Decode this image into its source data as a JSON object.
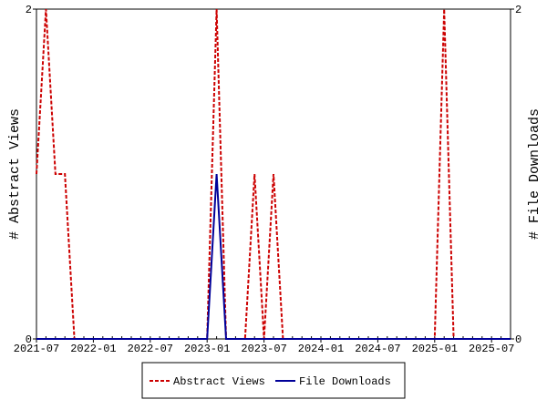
{
  "chart_data": {
    "type": "line",
    "x": [
      "2021-07",
      "2021-08",
      "2021-09",
      "2021-10",
      "2021-11",
      "2021-12",
      "2022-01",
      "2022-02",
      "2022-03",
      "2022-04",
      "2022-05",
      "2022-06",
      "2022-07",
      "2022-08",
      "2022-09",
      "2022-10",
      "2022-11",
      "2022-12",
      "2023-01",
      "2023-02",
      "2023-03",
      "2023-04",
      "2023-05",
      "2023-06",
      "2023-07",
      "2023-08",
      "2023-09",
      "2023-10",
      "2023-11",
      "2023-12",
      "2024-01",
      "2024-02",
      "2024-03",
      "2024-04",
      "2024-05",
      "2024-06",
      "2024-07",
      "2024-08",
      "2024-09",
      "2024-10",
      "2024-11",
      "2024-12",
      "2025-01",
      "2025-02",
      "2025-03",
      "2025-04",
      "2025-05",
      "2025-06",
      "2025-07",
      "2025-08",
      "2025-09"
    ],
    "series": [
      {
        "name": "Abstract Views",
        "color": "#cc0000",
        "dashed": true,
        "axis": "y",
        "values": [
          1,
          2,
          1,
          1,
          0,
          0,
          0,
          0,
          0,
          0,
          0,
          0,
          0,
          0,
          0,
          0,
          0,
          0,
          0,
          2,
          0,
          0,
          0,
          1,
          0,
          1,
          0,
          0,
          0,
          0,
          0,
          0,
          0,
          0,
          0,
          0,
          0,
          0,
          0,
          0,
          0,
          0,
          0,
          2,
          0,
          0,
          0,
          0,
          0,
          0,
          0
        ]
      },
      {
        "name": "File Downloads",
        "color": "#000099",
        "dashed": false,
        "axis": "y2",
        "values": [
          0,
          0,
          0,
          0,
          0,
          0,
          0,
          0,
          0,
          0,
          0,
          0,
          0,
          0,
          0,
          0,
          0,
          0,
          0,
          1,
          0,
          0,
          0,
          0,
          0,
          0,
          0,
          0,
          0,
          0,
          0,
          0,
          0,
          0,
          0,
          0,
          0,
          0,
          0,
          0,
          0,
          0,
          0,
          0,
          0,
          0,
          0,
          0,
          0,
          0,
          0
        ]
      }
    ],
    "xlim": [
      "2021-07",
      "2025-09"
    ],
    "xticks": [
      "2021-07",
      "2022-01",
      "2022-07",
      "2023-01",
      "2023-07",
      "2024-01",
      "2024-07",
      "2025-01",
      "2025-07"
    ],
    "ylim": [
      0,
      2
    ],
    "yticks": [
      0,
      2
    ],
    "y2lim": [
      0,
      2
    ],
    "y2ticks": [
      0,
      2
    ],
    "ylabel": "# Abstract Views",
    "y2label": "# File Downloads",
    "legend": "bottom"
  }
}
